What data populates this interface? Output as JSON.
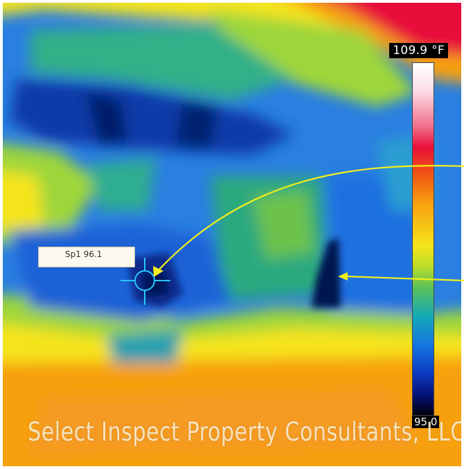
{
  "thermal_image": {
    "scale_max": "109.9 °F",
    "scale_min": "95.0",
    "spot_measurement": "Sp1 96.1",
    "watermark": "Select Inspect Property Consultants, LLC",
    "palette": [
      "#ffffff",
      "#e8103a",
      "#f7a010",
      "#f5e41a",
      "#58c05a",
      "#14a9b8",
      "#1676e0",
      "#06147a",
      "#000010"
    ],
    "annotation_color": "#f5f01c",
    "cursor_color": "#28c8ff"
  }
}
